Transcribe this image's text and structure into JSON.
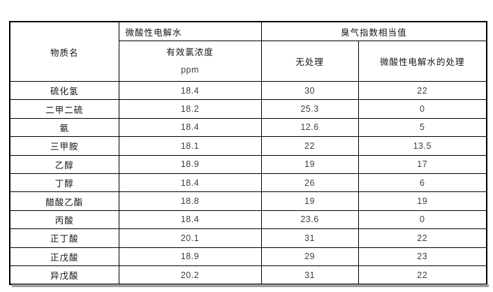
{
  "table": {
    "header": {
      "substance": "物质名",
      "electrolyzed_water": "微酸性电解水",
      "odor_index": "臭气指数相当值",
      "chlorine_line1": "有效氯浓度",
      "chlorine_line2": "ppm",
      "untreated": "无处理",
      "treated": "微酸性电解水的处理"
    },
    "rows": [
      {
        "substance": "硫化氢",
        "chlorine": "18.4",
        "untreated": "30",
        "treated": "22"
      },
      {
        "substance": "二甲二硫",
        "chlorine": "18.2",
        "untreated": "25.3",
        "treated": "0"
      },
      {
        "substance": "氨",
        "chlorine": "18.4",
        "untreated": "12.6",
        "treated": "5"
      },
      {
        "substance": "三甲胺",
        "chlorine": "18.1",
        "untreated": "22",
        "treated": "13.5"
      },
      {
        "substance": "乙醇",
        "chlorine": "18.9",
        "untreated": "19",
        "treated": "17"
      },
      {
        "substance": "丁醇",
        "chlorine": "18.4",
        "untreated": "26",
        "treated": "6"
      },
      {
        "substance": "醋酸乙酯",
        "chlorine": "18.8",
        "untreated": "19",
        "treated": "19"
      },
      {
        "substance": "丙酸",
        "chlorine": "18.4",
        "untreated": "23.6",
        "treated": "0"
      },
      {
        "substance": "正丁酸",
        "chlorine": "20.1",
        "untreated": "31",
        "treated": "22"
      },
      {
        "substance": "正戊酸",
        "chlorine": "18.9",
        "untreated": "29",
        "treated": "23"
      },
      {
        "substance": "异戊酸",
        "chlorine": "20.2",
        "untreated": "31",
        "treated": "22"
      }
    ],
    "colors": {
      "border": "#000000",
      "label_text": "#141414",
      "number_text": "#3f3f3f",
      "shadow": "#9e9e9e",
      "background": "#ffffff"
    }
  }
}
